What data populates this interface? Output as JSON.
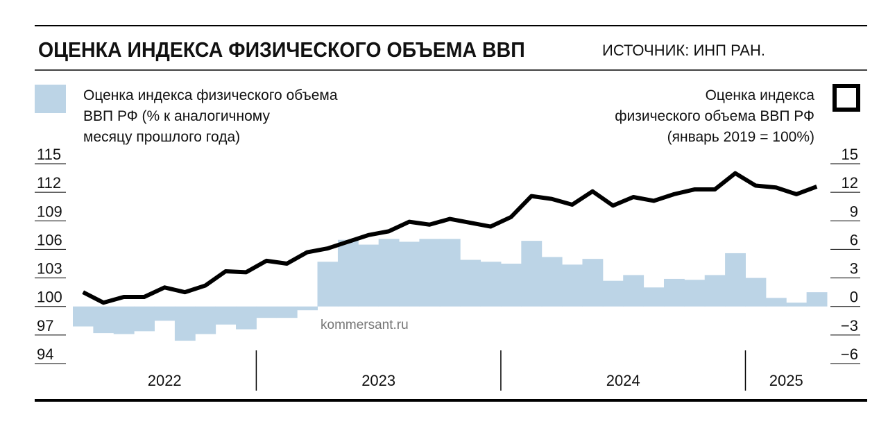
{
  "chart_data": {
    "type": "bar+line",
    "title": "ОЦЕНКА ИНДЕКСА ФИЗИЧЕСКОГО ОБЪЕМА ВВП",
    "source": "ИСТОЧНИК: ИНП РАН.",
    "watermark": "kommersant.ru",
    "categories": [
      "2022",
      "2022",
      "2022",
      "2022",
      "2022",
      "2022",
      "2022",
      "2022",
      "2022",
      "2023",
      "2023",
      "2023",
      "2023",
      "2023",
      "2023",
      "2023",
      "2023",
      "2023",
      "2023",
      "2023",
      "2023",
      "2024",
      "2024",
      "2024",
      "2024",
      "2024",
      "2024",
      "2024",
      "2024",
      "2024",
      "2024",
      "2024",
      "2024",
      "2025",
      "2025",
      "2025",
      "2025"
    ],
    "series": [
      {
        "name": [
          "Оценка индекса физического объема",
          "ВВП РФ (% к аналогичному",
          "месяцу прошлого года)"
        ],
        "type": "bar",
        "axis": "y2",
        "color": "#bcd4e6",
        "values": [
          -2.1,
          -2.8,
          -2.9,
          -2.6,
          -1.5,
          -3.6,
          -2.9,
          -1.9,
          -2.4,
          -1.2,
          -1.2,
          -0.4,
          4.7,
          7.0,
          6.5,
          7.1,
          6.8,
          7.1,
          7.1,
          4.9,
          4.7,
          4.5,
          6.9,
          5.2,
          4.4,
          5.0,
          2.7,
          3.3,
          2.0,
          2.9,
          2.8,
          3.3,
          5.6,
          3.0,
          0.9,
          0.4,
          1.5
        ]
      },
      {
        "name": [
          "Оценка индекса",
          "физического объема ВВП РФ",
          "(январь 2019 = 100%)"
        ],
        "type": "line",
        "axis": "y",
        "color": "#000000",
        "values": [
          101.5,
          100.4,
          101.0,
          101.0,
          102.0,
          101.5,
          102.2,
          103.7,
          103.6,
          104.8,
          104.5,
          105.7,
          106.1,
          106.8,
          107.5,
          107.9,
          108.9,
          108.6,
          109.2,
          108.8,
          108.4,
          109.4,
          111.6,
          111.3,
          110.7,
          112.1,
          110.6,
          111.5,
          111.1,
          111.8,
          112.3,
          112.3,
          114.0,
          112.7,
          112.5,
          111.8,
          112.6
        ]
      }
    ],
    "ylim": [
      94,
      115
    ],
    "yticks": [
      94,
      97,
      100,
      103,
      106,
      109,
      112,
      115
    ],
    "y2lim": [
      -6,
      15
    ],
    "y2ticks": [
      {
        "value": -6,
        "label": "−6"
      },
      {
        "value": -3,
        "label": "−3"
      },
      0,
      3,
      6,
      9,
      12,
      15
    ]
  }
}
